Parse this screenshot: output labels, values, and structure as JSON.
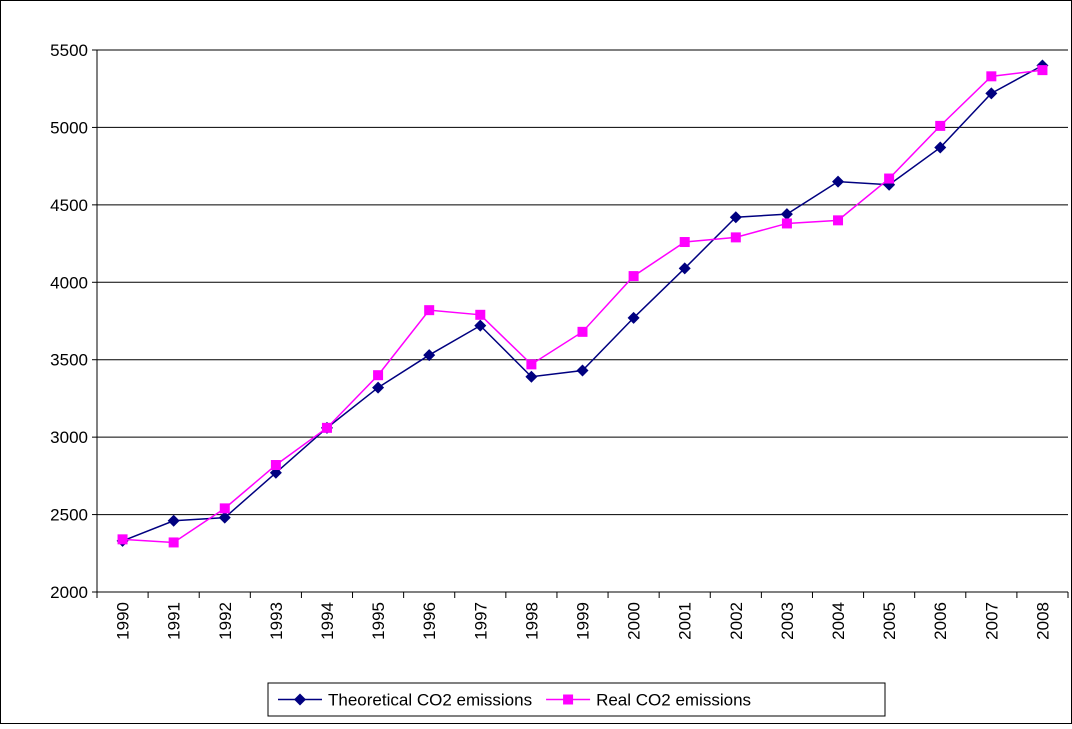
{
  "chart_data": {
    "type": "line",
    "categories": [
      "1990",
      "1991",
      "1992",
      "1993",
      "1994",
      "1995",
      "1996",
      "1997",
      "1998",
      "1999",
      "2000",
      "2001",
      "2002",
      "2003",
      "2004",
      "2005",
      "2006",
      "2007",
      "2008"
    ],
    "series": [
      {
        "name": "Theoretical CO2 emissions",
        "color": "#000080",
        "marker": "diamond",
        "values": [
          2330,
          2460,
          2480,
          2770,
          3060,
          3320,
          3530,
          3720,
          3390,
          3430,
          3770,
          4090,
          4420,
          4440,
          4650,
          4630,
          4870,
          5220,
          5400
        ]
      },
      {
        "name": "Real CO2 emissions",
        "color": "#ff00ff",
        "marker": "square",
        "values": [
          2340,
          2320,
          2540,
          2820,
          3060,
          3400,
          3820,
          3790,
          3470,
          3680,
          4040,
          4260,
          4290,
          4380,
          4400,
          4670,
          5010,
          5330,
          5370
        ]
      }
    ],
    "ylim": [
      2000,
      5500
    ],
    "yticks": [
      2000,
      2500,
      3000,
      3500,
      4000,
      4500,
      5000,
      5500
    ],
    "grid": true,
    "legend": "bottom"
  }
}
